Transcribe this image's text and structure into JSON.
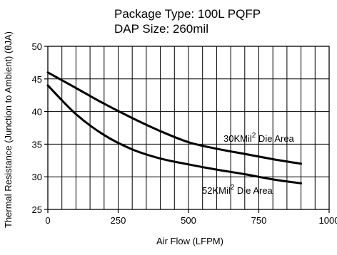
{
  "chart_data": {
    "type": "line",
    "title": "Package Type: 100L PQFP",
    "subtitle": "DAP Size: 260mil",
    "xlabel": "Air Flow (LFPM)",
    "ylabel": "Thermal Resistance (Junction to Ambient) (θJA)",
    "xlim": [
      0,
      1000
    ],
    "ylim": [
      25,
      50
    ],
    "xticks": [
      0,
      250,
      500,
      750,
      1000
    ],
    "xtick_labels": [
      "0",
      "250",
      "500",
      "750",
      "1000"
    ],
    "yticks": [
      25,
      30,
      35,
      40,
      45,
      50
    ],
    "ytick_labels": [
      "25",
      "30",
      "35",
      "40",
      "45",
      "50"
    ],
    "grid": true,
    "series": [
      {
        "name": "30KMil2 Die Area",
        "label_main": "30KMil",
        "label_sup": "2",
        "label_tail": " Die Area",
        "x": [
          0,
          100,
          200,
          300,
          400,
          500,
          600,
          700,
          800,
          900
        ],
        "values": [
          46.0,
          43.6,
          41.2,
          39.0,
          37.0,
          35.3,
          34.3,
          33.5,
          32.7,
          32.0
        ]
      },
      {
        "name": "52KMil2 Die Area",
        "label_main": "52KMil",
        "label_sup": "2",
        "label_tail": " Die Area",
        "x": [
          0,
          100,
          200,
          300,
          400,
          500,
          600,
          700,
          800,
          900
        ],
        "values": [
          44.0,
          39.6,
          36.4,
          34.2,
          32.8,
          31.9,
          31.1,
          30.4,
          29.6,
          29.0
        ]
      }
    ]
  }
}
